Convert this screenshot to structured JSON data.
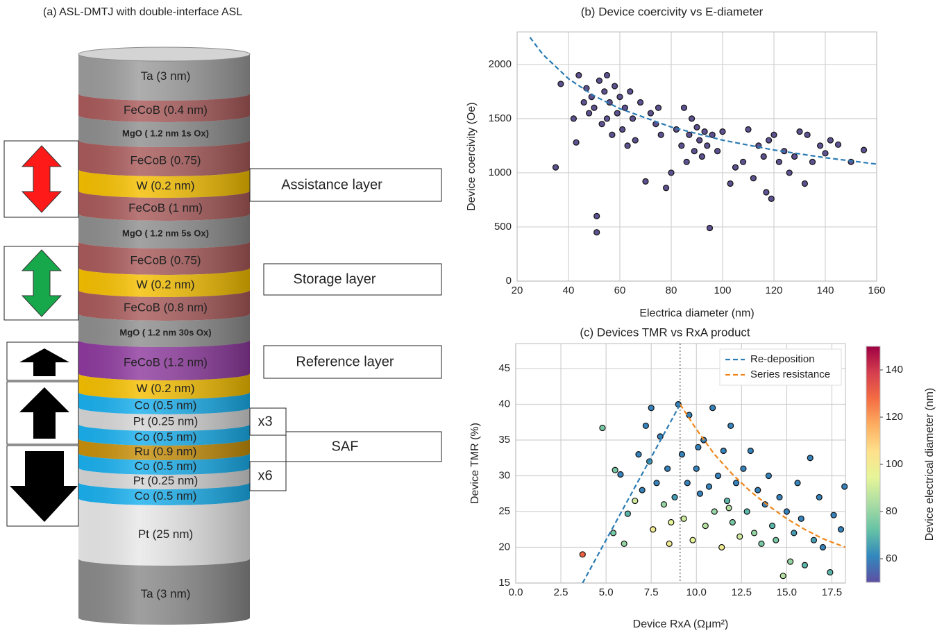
{
  "diagram": {
    "title": "(a) ASL-DMTJ with double-interface ASL",
    "layers": [
      {
        "label": "Ta (3 nm)",
        "color": "#9c9c9c"
      },
      {
        "label": "FeCoB (0.4 nm)",
        "color": "#a95a5a"
      },
      {
        "label": "MgO ( 1.2 nm 1s Ox)",
        "color": "#8e8e8e",
        "bold": true
      },
      {
        "label": "FeCoB (0.75)",
        "color": "#a95a5a"
      },
      {
        "label": "W (0.2 nm)",
        "color": "#f5bf00"
      },
      {
        "label": "FeCoB (1 nm)",
        "color": "#a95a5a"
      },
      {
        "label": "MgO ( 1.2 nm 5s Ox)",
        "color": "#8e8e8e",
        "bold": true
      },
      {
        "label": "FeCoB (0.75)",
        "color": "#a95a5a"
      },
      {
        "label": "W (0.2 nm)",
        "color": "#f5bf00"
      },
      {
        "label": "FeCoB (0.8 nm)",
        "color": "#a95a5a"
      },
      {
        "label": "MgO ( 1.2 nm 30s Ox)",
        "color": "#8e8e8e",
        "bold": true
      },
      {
        "label": "FeCoB (1.2 nm)",
        "color": "#8e3a9e"
      },
      {
        "label": "W (0.2 nm)",
        "color": "#f5bf00"
      },
      {
        "label": "Co (0.5 nm)",
        "color": "#1ab0ee"
      },
      {
        "label": "Pt (0.25 nm)",
        "color": "#d6d6d6"
      },
      {
        "label": "Co (0.5 nm)",
        "color": "#1ab0ee"
      },
      {
        "label": "Ru (0.9 nm)",
        "color": "#c8900a"
      },
      {
        "label": "Co (0.5 nm)",
        "color": "#1ab0ee"
      },
      {
        "label": "Pt (0.25 nm)",
        "color": "#d6d6d6"
      },
      {
        "label": "Co (0.5 nm)",
        "color": "#1ab0ee"
      },
      {
        "label": "Pt (25 nm)",
        "color": "#e8e8e8"
      },
      {
        "label": "Ta (3 nm)",
        "color": "#8a8a8a"
      }
    ],
    "labels": [
      "Assistance layer",
      "Storage layer",
      "Reference layer",
      "SAF",
      "x3",
      "x6"
    ]
  },
  "chart_data": [
    {
      "type": "scatter",
      "title": "(b) Device coercivity vs E-diameter",
      "x_label": "Electrica diameter (nm)",
      "y_label": "Device coercivity (Oe)",
      "xlim": [
        20,
        160
      ],
      "ylim": [
        0,
        2300
      ],
      "xticks": [
        20,
        40,
        60,
        80,
        100,
        120,
        140,
        160
      ],
      "yticks": [
        0,
        500,
        1000,
        1500,
        2000
      ],
      "grid": true,
      "color": "#5e5190",
      "x": [
        35,
        37,
        42,
        43,
        44,
        46,
        47,
        48,
        49,
        50,
        51,
        51,
        52,
        53,
        54,
        55,
        55,
        56,
        57,
        58,
        59,
        60,
        61,
        62,
        63,
        64,
        65,
        66,
        68,
        70,
        72,
        74,
        75,
        76,
        78,
        80,
        82,
        84,
        85,
        86,
        87,
        88,
        89,
        90,
        91,
        92,
        93,
        94,
        95,
        96,
        98,
        100,
        103,
        105,
        108,
        110,
        112,
        114,
        116,
        117,
        118,
        119,
        120,
        122,
        124,
        126,
        128,
        130,
        132,
        133,
        135,
        138,
        140,
        142,
        145,
        150,
        155
      ],
      "values": [
        1050,
        1820,
        1500,
        1280,
        1900,
        1650,
        1780,
        1550,
        1700,
        1600,
        600,
        450,
        1850,
        1450,
        1750,
        1500,
        1900,
        1650,
        1350,
        1800,
        1550,
        1700,
        1400,
        1600,
        1250,
        1750,
        1500,
        1300,
        1650,
        920,
        1550,
        1450,
        1600,
        1350,
        860,
        1000,
        1400,
        1250,
        1600,
        1100,
        1350,
        1500,
        1200,
        1420,
        1300,
        1150,
        1380,
        1250,
        490,
        1350,
        1200,
        1380,
        900,
        1050,
        1100,
        1400,
        950,
        1250,
        1150,
        820,
        1300,
        760,
        1350,
        1100,
        1200,
        1000,
        1150,
        1380,
        900,
        1350,
        1100,
        1250,
        1180,
        1300,
        1260,
        1100,
        1210
      ],
      "series": [
        {
          "color": "#2b7bb4",
          "dash": true,
          "x": [
            25,
            30,
            40,
            50,
            60,
            80,
            100,
            120,
            140,
            160
          ],
          "values": [
            2250,
            2093,
            1868,
            1710,
            1592,
            1422,
            1301,
            1210,
            1139,
            1080
          ]
        }
      ]
    },
    {
      "type": "scatter",
      "title": "(c) Devices TMR vs RxA product",
      "x_label": "Device RxA (Ωμm²)",
      "y_label": "Device TMR (%)",
      "xlim": [
        0,
        18.25
      ],
      "ylim": [
        15,
        48.5
      ],
      "xticks": [
        {
          "value": 0,
          "label": "0.0"
        },
        2.5,
        {
          "value": 5,
          "label": "5.0"
        },
        7.5,
        {
          "value": 10,
          "label": "10.0"
        },
        12.5,
        {
          "value": 15,
          "label": "15.0"
        },
        17.5
      ],
      "yticks": [
        15,
        20,
        25,
        30,
        35,
        40,
        45
      ],
      "grid": true,
      "legend": "upper right",
      "vline": 9.1,
      "colormap": [
        "#5e4fa2",
        "#3288bd",
        "#66c2a5",
        "#abdda4",
        "#e6f598",
        "#fee08b",
        "#fdae61",
        "#f46d43",
        "#d53e4f",
        "#9e0142"
      ],
      "colorbar": {
        "label": "Device electrical diameter (nm)",
        "lim": [
          50,
          150
        ],
        "ticks": [
          60,
          80,
          100,
          120,
          140
        ]
      },
      "x": [
        3.7,
        4.8,
        5.5,
        5.8,
        5.4,
        6.2,
        6.6,
        6.8,
        7.0,
        7.2,
        7.4,
        7.5,
        7.6,
        7.8,
        8.0,
        8.2,
        8.4,
        8.5,
        8.8,
        9.0,
        9.2,
        9.3,
        9.5,
        9.6,
        9.8,
        10.0,
        10.2,
        10.4,
        10.5,
        10.7,
        10.9,
        11.0,
        11.2,
        11.4,
        11.5,
        11.7,
        11.9,
        12.0,
        12.2,
        12.4,
        12.6,
        12.8,
        13.0,
        13.2,
        13.4,
        13.6,
        13.8,
        14.0,
        14.2,
        14.4,
        14.6,
        14.8,
        15.0,
        15.2,
        15.4,
        15.6,
        15.8,
        16.0,
        16.3,
        16.5,
        16.8,
        17.0,
        17.4,
        17.6,
        18.0,
        18.2,
        6.0,
        8.6,
        10.1,
        11.8
      ],
      "values": [
        19,
        36.7,
        30.8,
        30.2,
        22,
        24.7,
        26.5,
        33,
        28,
        37,
        32,
        39.5,
        22.5,
        29,
        35.5,
        26,
        31,
        20.5,
        27,
        40,
        33,
        24,
        29,
        38.5,
        21,
        31,
        27.5,
        35,
        23,
        28.5,
        39.5,
        25,
        30,
        20,
        33.5,
        26.5,
        37,
        23.5,
        29,
        21.5,
        31,
        25,
        33.5,
        22,
        28,
        20.5,
        26,
        30,
        23,
        21,
        27,
        16,
        25,
        18,
        22,
        29,
        24,
        17.5,
        32.5,
        21,
        27,
        20,
        16.5,
        24.5,
        22.5,
        28.5,
        20.5,
        23.5,
        34,
        25.5
      ],
      "colorvalues": [
        130,
        75,
        75,
        60,
        75,
        70,
        90,
        60,
        60,
        60,
        65,
        60,
        100,
        60,
        60,
        80,
        60,
        100,
        65,
        60,
        60,
        90,
        60,
        60,
        95,
        60,
        60,
        60,
        85,
        60,
        60,
        80,
        60,
        100,
        60,
        70,
        60,
        75,
        60,
        90,
        60,
        70,
        60,
        80,
        60,
        75,
        60,
        60,
        70,
        75,
        60,
        85,
        60,
        80,
        65,
        60,
        60,
        70,
        60,
        65,
        60,
        60,
        70,
        60,
        60,
        60,
        80,
        95,
        60,
        85
      ],
      "series": [
        {
          "name": "Re-deposition",
          "color": "#2b7bb4",
          "dash": true,
          "x": [
            3.7,
            9.1
          ],
          "values": [
            15,
            40
          ]
        },
        {
          "name": "Series resistance",
          "color": "#f0851a",
          "dash": true,
          "x": [
            9.1,
            10,
            11,
            12,
            13,
            14,
            15,
            16,
            17,
            18.25
          ],
          "values": [
            40,
            36.5,
            33,
            30.2,
            27.8,
            25.8,
            24,
            22.5,
            21.2,
            20
          ]
        }
      ]
    }
  ]
}
